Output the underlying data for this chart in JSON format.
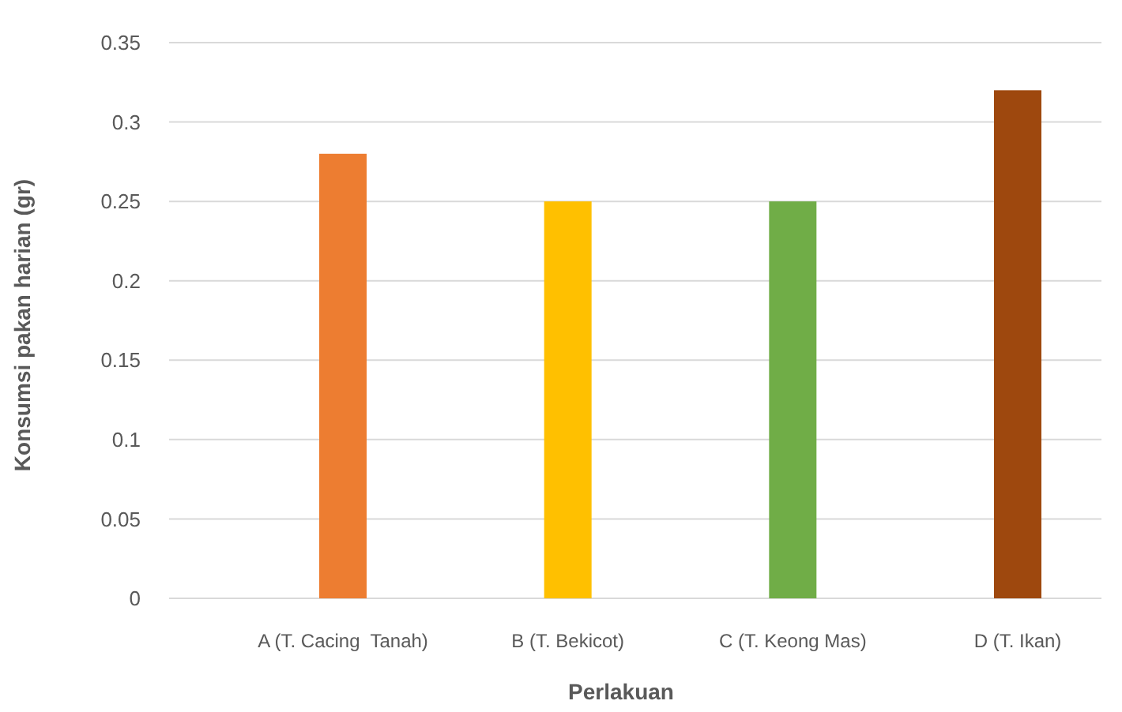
{
  "chart_data": {
    "type": "bar",
    "xlabel": "Perlakuan",
    "ylabel": "Konsumsi pakan harian (gr)",
    "categories": [
      "A (T. Cacing  Tanah)",
      "B (T. Bekicot)",
      "C (T. Keong Mas)",
      "D (T. Ikan)"
    ],
    "values": [
      0.28,
      0.25,
      0.25,
      0.32
    ],
    "colors": [
      "#ed7d31",
      "#ffc000",
      "#70ad47",
      "#9e480e"
    ],
    "ylim": [
      0,
      0.35
    ],
    "yticks": [
      0,
      0.05,
      0.1,
      0.15,
      0.2,
      0.25,
      0.3,
      0.35
    ],
    "grid": "y"
  }
}
